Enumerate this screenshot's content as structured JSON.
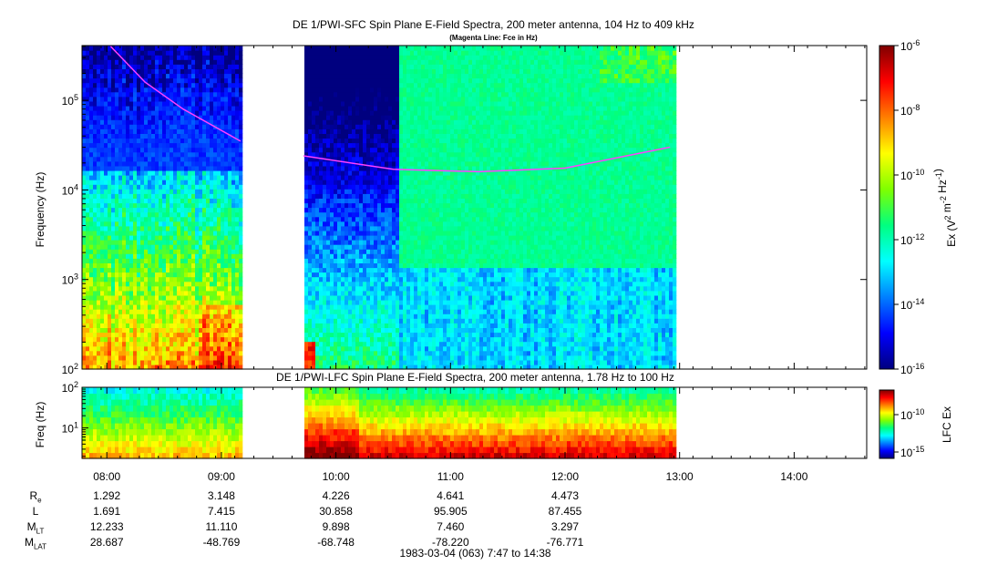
{
  "titles": {
    "sfc": "DE 1/PWI-SFC  Spin Plane E-Field Spectra, 200 meter antenna, 104 Hz to 409 kHz",
    "sfc_note": "(Magenta Line: Fce in Hz)",
    "lfc": "DE 1/PWI-LFC  Spin Plane E-Field Spectra, 200 meter antenna, 1.78 Hz to 100 Hz",
    "footer": "1983-03-04 (063) 7:47 to 14:38"
  },
  "colors": {
    "cmap": [
      "#00007f",
      "#0000ff",
      "#007fff",
      "#00ffff",
      "#00ff80",
      "#7fff00",
      "#ffff00",
      "#ff7f00",
      "#ff0000",
      "#7f0000"
    ],
    "fce_line": "#ff40ff"
  },
  "chart_data": [
    {
      "type": "heatmap",
      "name": "sfc",
      "ylabel": "Frequency (Hz)",
      "yscale": "log",
      "ylim": [
        100,
        409000
      ],
      "ytick_labels": [
        "10^2",
        "10^3",
        "10^4",
        "10^5"
      ],
      "xlim": [
        "07:47",
        "14:38"
      ],
      "data_gaps": [
        [
          "09:10",
          "09:43"
        ],
        [
          "12:58",
          "14:38"
        ]
      ],
      "fce_series_hz": [
        {
          "t": "08:02",
          "hz": 400000
        },
        {
          "t": "08:20",
          "hz": 160000
        },
        {
          "t": "08:40",
          "hz": 80000
        },
        {
          "t": "09:10",
          "hz": 35000
        },
        {
          "t": "09:43",
          "hz": 24000
        },
        {
          "t": "10:30",
          "hz": 17000
        },
        {
          "t": "11:15",
          "hz": 16000
        },
        {
          "t": "12:00",
          "hz": 17500
        },
        {
          "t": "12:55",
          "hz": 30000
        }
      ]
    },
    {
      "type": "heatmap",
      "name": "lfc",
      "ylabel": "Freq (Hz)",
      "yscale": "log",
      "ylim": [
        1.78,
        100
      ],
      "ytick_labels": [
        "10^1",
        "10^2"
      ],
      "xlim": [
        "07:47",
        "14:38"
      ],
      "data_gaps": [
        [
          "09:10",
          "09:43"
        ],
        [
          "12:58",
          "14:38"
        ]
      ]
    },
    {
      "type": "heatmap-colorbar",
      "name": "sfc-colorbar",
      "label": "Ex (V^2 m^-2 Hz^-1)",
      "scale": "log",
      "range": [
        "10^-16",
        "10^-6"
      ],
      "tick_labels": [
        "10^-6",
        "10^-8",
        "10^-10",
        "10^-12",
        "10^-14",
        "10^-16"
      ]
    },
    {
      "type": "heatmap-colorbar",
      "name": "lfc-colorbar",
      "label": "LFC Ex",
      "scale": "log",
      "tick_labels": [
        "10^-10",
        "10^-15"
      ]
    }
  ],
  "time_axis": {
    "ticks": [
      "08:00",
      "09:00",
      "10:00",
      "11:00",
      "12:00",
      "13:00",
      "14:00"
    ],
    "minor_per_major": 6
  },
  "orbit": {
    "labels": [
      {
        "base": "R",
        "sub": "e"
      },
      {
        "base": "L",
        "sub": ""
      },
      {
        "base": "M",
        "sub": "LT"
      },
      {
        "base": "M",
        "sub": "LAT"
      }
    ],
    "columns": [
      {
        "t": "08:00",
        "values": [
          "1.292",
          "1.691",
          "12.233",
          "28.687"
        ]
      },
      {
        "t": "09:00",
        "values": [
          "3.148",
          "7.415",
          "11.110",
          "-48.769"
        ]
      },
      {
        "t": "10:00",
        "values": [
          "4.226",
          "30.858",
          "9.898",
          "-68.748"
        ]
      },
      {
        "t": "11:00",
        "values": [
          "4.641",
          "95.905",
          "7.460",
          "-78.220"
        ]
      },
      {
        "t": "12:00",
        "values": [
          "4.473",
          "87.455",
          "3.297",
          "-76.771"
        ]
      }
    ]
  }
}
